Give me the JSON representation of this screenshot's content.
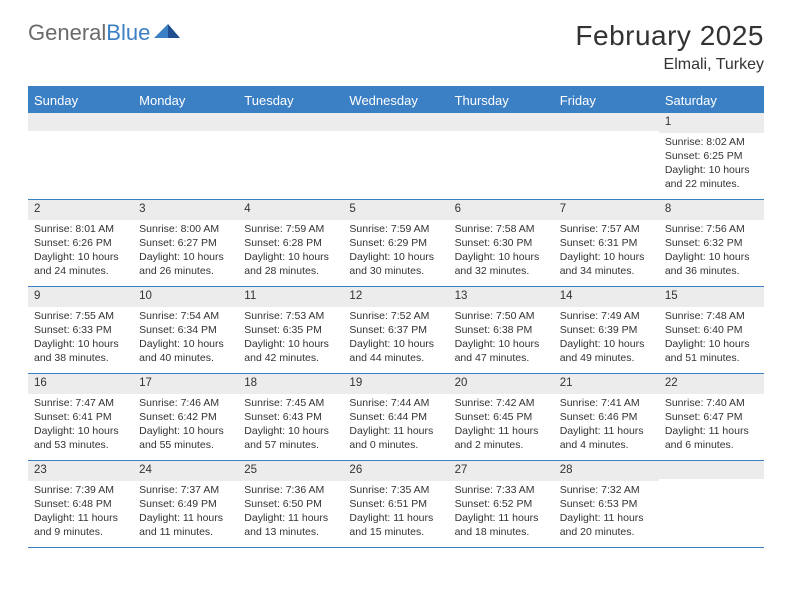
{
  "logo": {
    "text_gray": "General",
    "text_blue": "Blue"
  },
  "title": "February 2025",
  "location": "Elmali, Turkey",
  "colors": {
    "header_bg": "#3b7fc4",
    "header_text": "#ffffff",
    "daynum_bg": "#ececec",
    "body_text": "#333333",
    "logo_gray": "#6a6a6a",
    "logo_blue": "#3b7fc4"
  },
  "day_names": [
    "Sunday",
    "Monday",
    "Tuesday",
    "Wednesday",
    "Thursday",
    "Friday",
    "Saturday"
  ],
  "weeks": [
    [
      {
        "n": "",
        "sunrise": "",
        "sunset": "",
        "daylight": ""
      },
      {
        "n": "",
        "sunrise": "",
        "sunset": "",
        "daylight": ""
      },
      {
        "n": "",
        "sunrise": "",
        "sunset": "",
        "daylight": ""
      },
      {
        "n": "",
        "sunrise": "",
        "sunset": "",
        "daylight": ""
      },
      {
        "n": "",
        "sunrise": "",
        "sunset": "",
        "daylight": ""
      },
      {
        "n": "",
        "sunrise": "",
        "sunset": "",
        "daylight": ""
      },
      {
        "n": "1",
        "sunrise": "Sunrise: 8:02 AM",
        "sunset": "Sunset: 6:25 PM",
        "daylight": "Daylight: 10 hours and 22 minutes."
      }
    ],
    [
      {
        "n": "2",
        "sunrise": "Sunrise: 8:01 AM",
        "sunset": "Sunset: 6:26 PM",
        "daylight": "Daylight: 10 hours and 24 minutes."
      },
      {
        "n": "3",
        "sunrise": "Sunrise: 8:00 AM",
        "sunset": "Sunset: 6:27 PM",
        "daylight": "Daylight: 10 hours and 26 minutes."
      },
      {
        "n": "4",
        "sunrise": "Sunrise: 7:59 AM",
        "sunset": "Sunset: 6:28 PM",
        "daylight": "Daylight: 10 hours and 28 minutes."
      },
      {
        "n": "5",
        "sunrise": "Sunrise: 7:59 AM",
        "sunset": "Sunset: 6:29 PM",
        "daylight": "Daylight: 10 hours and 30 minutes."
      },
      {
        "n": "6",
        "sunrise": "Sunrise: 7:58 AM",
        "sunset": "Sunset: 6:30 PM",
        "daylight": "Daylight: 10 hours and 32 minutes."
      },
      {
        "n": "7",
        "sunrise": "Sunrise: 7:57 AM",
        "sunset": "Sunset: 6:31 PM",
        "daylight": "Daylight: 10 hours and 34 minutes."
      },
      {
        "n": "8",
        "sunrise": "Sunrise: 7:56 AM",
        "sunset": "Sunset: 6:32 PM",
        "daylight": "Daylight: 10 hours and 36 minutes."
      }
    ],
    [
      {
        "n": "9",
        "sunrise": "Sunrise: 7:55 AM",
        "sunset": "Sunset: 6:33 PM",
        "daylight": "Daylight: 10 hours and 38 minutes."
      },
      {
        "n": "10",
        "sunrise": "Sunrise: 7:54 AM",
        "sunset": "Sunset: 6:34 PM",
        "daylight": "Daylight: 10 hours and 40 minutes."
      },
      {
        "n": "11",
        "sunrise": "Sunrise: 7:53 AM",
        "sunset": "Sunset: 6:35 PM",
        "daylight": "Daylight: 10 hours and 42 minutes."
      },
      {
        "n": "12",
        "sunrise": "Sunrise: 7:52 AM",
        "sunset": "Sunset: 6:37 PM",
        "daylight": "Daylight: 10 hours and 44 minutes."
      },
      {
        "n": "13",
        "sunrise": "Sunrise: 7:50 AM",
        "sunset": "Sunset: 6:38 PM",
        "daylight": "Daylight: 10 hours and 47 minutes."
      },
      {
        "n": "14",
        "sunrise": "Sunrise: 7:49 AM",
        "sunset": "Sunset: 6:39 PM",
        "daylight": "Daylight: 10 hours and 49 minutes."
      },
      {
        "n": "15",
        "sunrise": "Sunrise: 7:48 AM",
        "sunset": "Sunset: 6:40 PM",
        "daylight": "Daylight: 10 hours and 51 minutes."
      }
    ],
    [
      {
        "n": "16",
        "sunrise": "Sunrise: 7:47 AM",
        "sunset": "Sunset: 6:41 PM",
        "daylight": "Daylight: 10 hours and 53 minutes."
      },
      {
        "n": "17",
        "sunrise": "Sunrise: 7:46 AM",
        "sunset": "Sunset: 6:42 PM",
        "daylight": "Daylight: 10 hours and 55 minutes."
      },
      {
        "n": "18",
        "sunrise": "Sunrise: 7:45 AM",
        "sunset": "Sunset: 6:43 PM",
        "daylight": "Daylight: 10 hours and 57 minutes."
      },
      {
        "n": "19",
        "sunrise": "Sunrise: 7:44 AM",
        "sunset": "Sunset: 6:44 PM",
        "daylight": "Daylight: 11 hours and 0 minutes."
      },
      {
        "n": "20",
        "sunrise": "Sunrise: 7:42 AM",
        "sunset": "Sunset: 6:45 PM",
        "daylight": "Daylight: 11 hours and 2 minutes."
      },
      {
        "n": "21",
        "sunrise": "Sunrise: 7:41 AM",
        "sunset": "Sunset: 6:46 PM",
        "daylight": "Daylight: 11 hours and 4 minutes."
      },
      {
        "n": "22",
        "sunrise": "Sunrise: 7:40 AM",
        "sunset": "Sunset: 6:47 PM",
        "daylight": "Daylight: 11 hours and 6 minutes."
      }
    ],
    [
      {
        "n": "23",
        "sunrise": "Sunrise: 7:39 AM",
        "sunset": "Sunset: 6:48 PM",
        "daylight": "Daylight: 11 hours and 9 minutes."
      },
      {
        "n": "24",
        "sunrise": "Sunrise: 7:37 AM",
        "sunset": "Sunset: 6:49 PM",
        "daylight": "Daylight: 11 hours and 11 minutes."
      },
      {
        "n": "25",
        "sunrise": "Sunrise: 7:36 AM",
        "sunset": "Sunset: 6:50 PM",
        "daylight": "Daylight: 11 hours and 13 minutes."
      },
      {
        "n": "26",
        "sunrise": "Sunrise: 7:35 AM",
        "sunset": "Sunset: 6:51 PM",
        "daylight": "Daylight: 11 hours and 15 minutes."
      },
      {
        "n": "27",
        "sunrise": "Sunrise: 7:33 AM",
        "sunset": "Sunset: 6:52 PM",
        "daylight": "Daylight: 11 hours and 18 minutes."
      },
      {
        "n": "28",
        "sunrise": "Sunrise: 7:32 AM",
        "sunset": "Sunset: 6:53 PM",
        "daylight": "Daylight: 11 hours and 20 minutes."
      },
      {
        "n": "",
        "sunrise": "",
        "sunset": "",
        "daylight": ""
      }
    ]
  ]
}
